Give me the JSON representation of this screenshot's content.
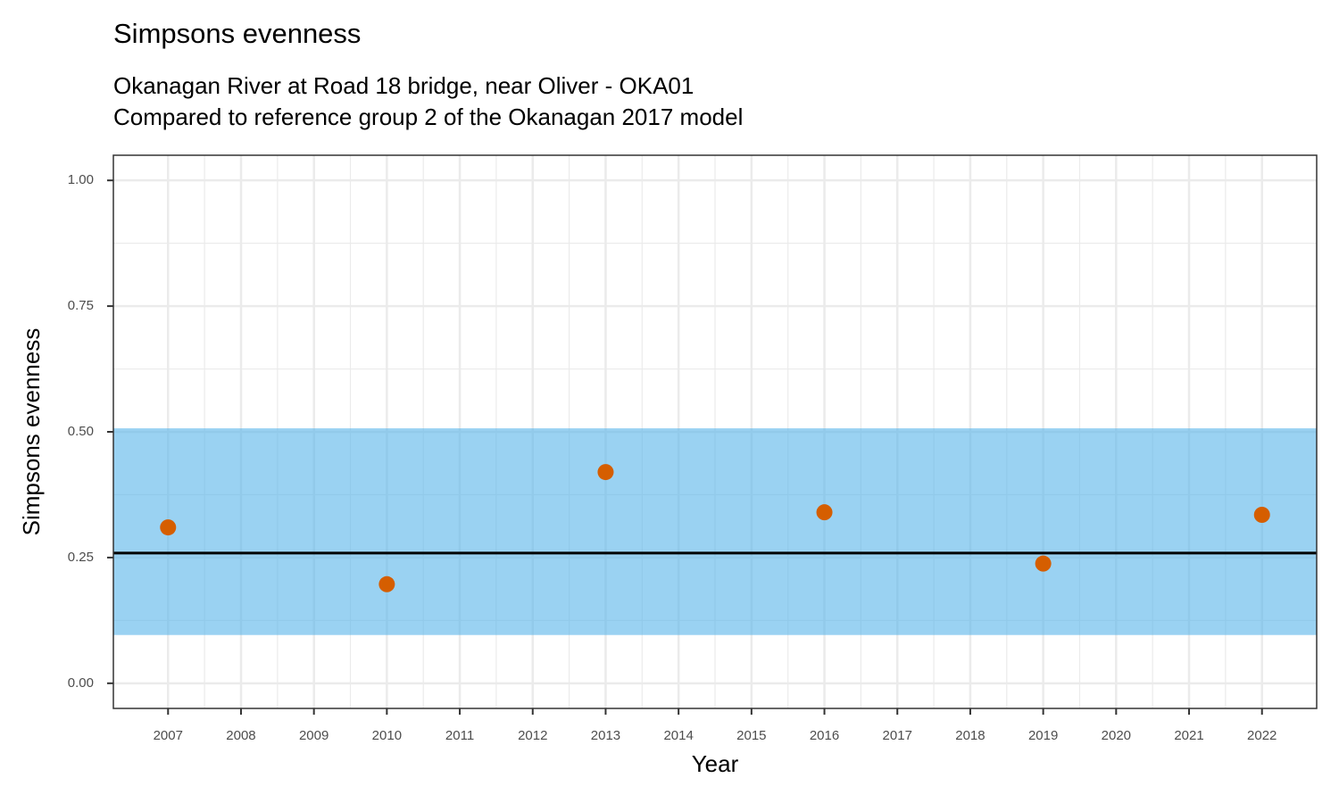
{
  "chart_data": {
    "type": "scatter",
    "title": "Simpsons evenness",
    "subtitle": [
      "Okanagan River at Road 18 bridge, near Oliver - OKA01",
      "Compared to reference group 2 of the Okanagan 2017 model"
    ],
    "x_label": "Year",
    "y_label": "Simpsons evenness",
    "x": [
      2007,
      2010,
      2013,
      2016,
      2019,
      2022
    ],
    "values": [
      0.31,
      0.197,
      0.42,
      0.34,
      0.238,
      0.335
    ],
    "color": "#d55e00",
    "reference_band": {
      "lower": 0.096,
      "upper": 0.507,
      "color": "#56b4e9"
    },
    "reference_line": {
      "value": 0.259,
      "color": "#000000"
    },
    "xlim": [
      2006.25,
      2022.75
    ],
    "xticks": [
      2007,
      2008,
      2009,
      2010,
      2011,
      2012,
      2013,
      2014,
      2015,
      2016,
      2017,
      2018,
      2019,
      2020,
      2021,
      2022
    ],
    "ylim": [
      -0.05,
      1.05
    ],
    "yticks": [
      {
        "value": 0,
        "label": "0.00"
      },
      {
        "value": 0.25,
        "label": "0.25"
      },
      {
        "value": 0.5,
        "label": "0.50"
      },
      {
        "value": 0.75,
        "label": "0.75"
      },
      {
        "value": 1,
        "label": "1.00"
      }
    ],
    "grid": true
  }
}
